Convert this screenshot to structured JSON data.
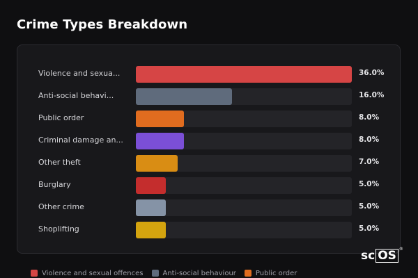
{
  "page": {
    "title": "Crime Types Breakdown"
  },
  "chart_data": {
    "type": "bar",
    "orientation": "horizontal",
    "title": "Crime Types Breakdown",
    "xlim": [
      0,
      36
    ],
    "categories": [
      "Violence and sexual offences",
      "Anti-social behaviour",
      "Public order",
      "Criminal damage and arson",
      "Other theft",
      "Burglary",
      "Other crime",
      "Shoplifting"
    ],
    "display_labels": [
      "Violence and sexua...",
      "Anti-social behavi...",
      "Public order",
      "Criminal damage an...",
      "Other theft",
      "Burglary",
      "Other crime",
      "Shoplifting"
    ],
    "values": [
      36.0,
      16.0,
      8.0,
      8.0,
      7.0,
      5.0,
      5.0,
      5.0
    ],
    "value_labels": [
      "36.0%",
      "16.0%",
      "8.0%",
      "8.0%",
      "7.0%",
      "5.0%",
      "5.0%",
      "5.0%"
    ],
    "colors": [
      "#d64545",
      "#5f6b7c",
      "#e06c1f",
      "#7b4fd6",
      "#d98d14",
      "#c42d2d",
      "#8593a6",
      "#d4a40f"
    ],
    "legend_position": "bottom",
    "legend": [
      {
        "label": "Violence and sexual offences",
        "color": "#d64545"
      },
      {
        "label": "Anti-social behaviour",
        "color": "#5f6b7c"
      },
      {
        "label": "Public order",
        "color": "#e06c1f"
      }
    ]
  },
  "logo": {
    "prefix": "sc",
    "boxed": "OS",
    "mark": "®"
  }
}
